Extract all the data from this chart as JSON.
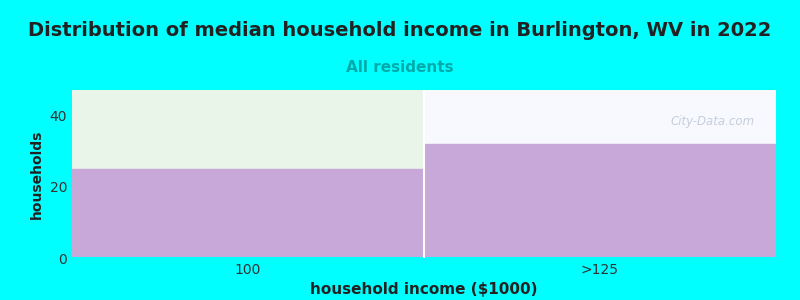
{
  "title": "Distribution of median household income in Burlington, WV in 2022",
  "subtitle": "All residents",
  "xlabel": "household income ($1000)",
  "ylabel": "households",
  "categories": [
    "100",
    ">125"
  ],
  "values": [
    25,
    32
  ],
  "bar_color": "#c8a8d8",
  "background_color": "#00ffff",
  "plot_bg_color": "#f5fff5",
  "plot_bg_right_color": "#f8f8ff",
  "green_tint_color": "#e8f5e8",
  "ylim": [
    0,
    47
  ],
  "yticks": [
    0,
    20,
    40
  ],
  "title_fontsize": 14,
  "subtitle_fontsize": 11,
  "subtitle_color": "#00aaaa",
  "xlabel_fontsize": 11,
  "ylabel_fontsize": 10,
  "watermark": "City-Data.com",
  "tick_label_fontsize": 10
}
